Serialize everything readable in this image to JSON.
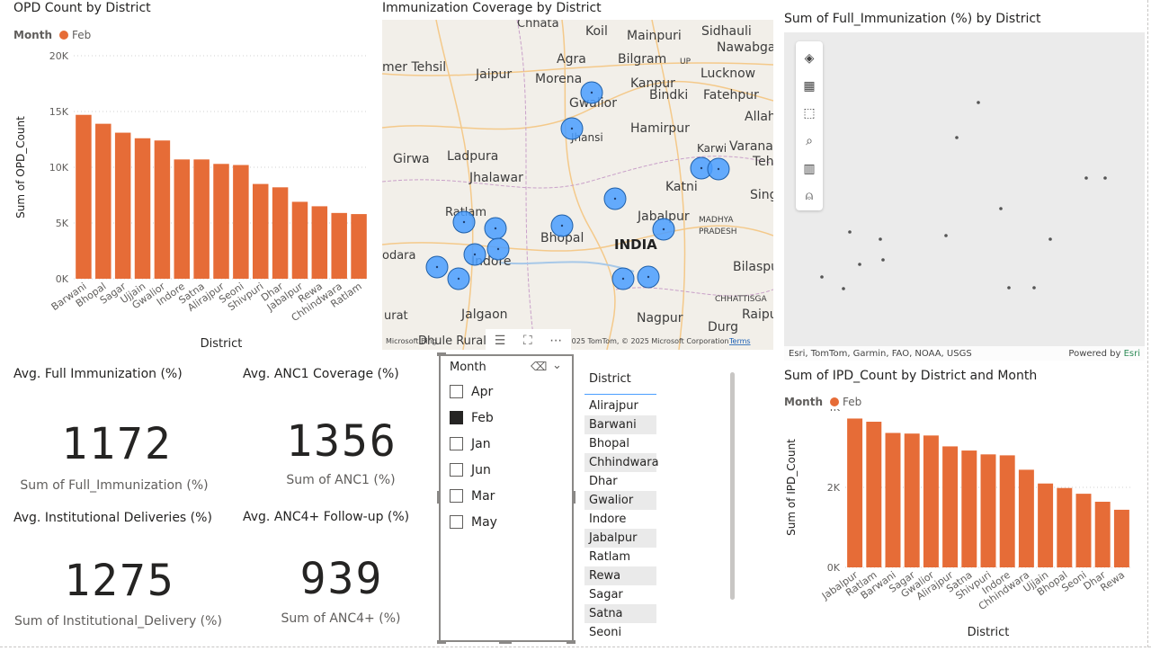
{
  "opd_chart": {
    "title": "OPD Count by District",
    "legend_header": "Month",
    "legend_item": "Feb"
  },
  "immunization_map": {
    "title": "Immunization Coverage by District",
    "place_labels": [
      "Chhata",
      "Koil",
      "Mainpuri",
      "Sidhauli",
      "Nawabganj",
      "mer Tehsil",
      "Jaipur",
      "Agra",
      "Bilgram",
      "UP",
      "Lucknow",
      "Morena",
      "Kanpur",
      "Bindki",
      "Fatehpur",
      "Gwalior",
      "Allah",
      "Jhansi",
      "Hamirpur",
      "Varanasi",
      "Karwi",
      "Tehsi",
      "Girwa",
      "Ladpura",
      "Jhalawar",
      "Katni",
      "Sing",
      "Ratlam",
      "Jabalpur",
      "MADHYA",
      "PRADESH",
      "Bhopal",
      "INDIA",
      "odara",
      "Indore",
      "Bilaspur",
      "CHHATTISGA",
      "urat",
      "Jalgaon",
      "Raipu",
      "Dhule Rural",
      "Nagpur",
      "Durg"
    ],
    "attribution": "© 2025 TomTom, © 2025 Microsoft Corporation",
    "terms_label": "Terms",
    "bing_label": "Microsoft Bing"
  },
  "full_immunization_map": {
    "title": "Sum of Full_Immunization (%) by District",
    "attribution_left": "Esri, TomTom, Garmin, FAO, NOAA, USGS",
    "powered_by_label": "Powered by",
    "esri_label": "Esri",
    "tools": [
      "layers-icon",
      "qr-grid-icon",
      "select-box-icon",
      "magnify-icon",
      "bar-chart-icon",
      "person-icon"
    ]
  },
  "cards": [
    {
      "title": "Avg. Full Immunization (%)",
      "value": "1172",
      "label": "Sum of Full_Immunization (%)"
    },
    {
      "title": "Avg. ANC1 Coverage (%)",
      "value": "1356",
      "label": "Sum of ANC1 (%)"
    },
    {
      "title": "Avg. Institutional Deliveries (%)",
      "value": "1275",
      "label": "Sum of Institutional_Delivery (%)"
    },
    {
      "title": "Avg. ANC4+ Follow-up (%)",
      "value": "939",
      "label": "Sum of ANC4+ (%)"
    }
  ],
  "month_slicer": {
    "header": "Month",
    "items": [
      {
        "label": "Apr",
        "checked": false
      },
      {
        "label": "Feb",
        "checked": true
      },
      {
        "label": "Jan",
        "checked": false
      },
      {
        "label": "Jun",
        "checked": false
      },
      {
        "label": "Mar",
        "checked": false
      },
      {
        "label": "May",
        "checked": false
      }
    ]
  },
  "district_slicer": {
    "header": "District",
    "items": [
      "Alirajpur",
      "Barwani",
      "Bhopal",
      "Chhindwara",
      "Dhar",
      "Gwalior",
      "Indore",
      "Jabalpur",
      "Ratlam",
      "Rewa",
      "Sagar",
      "Satna",
      "Seoni"
    ]
  },
  "ipd_chart": {
    "title": "Sum of IPD_Count by District and Month",
    "legend_header": "Month",
    "legend_item": "Feb"
  },
  "colors": {
    "bar": "#e66c37",
    "bubble": "#4a9eff",
    "grid": "#d0d0d0"
  },
  "chart_data": [
    {
      "type": "bar",
      "title": "OPD Count by District",
      "xlabel": "District",
      "ylabel": "Sum of OPD_Count",
      "series": [
        {
          "name": "Feb",
          "values": [
            14700,
            13900,
            13100,
            12600,
            12400,
            10700,
            10700,
            10300,
            10200,
            8500,
            8200,
            6900,
            6500,
            5900,
            5800
          ]
        }
      ],
      "categories": [
        "Barwani",
        "Bhopal",
        "Sagar",
        "Ujjain",
        "Gwalior",
        "Indore",
        "Satna",
        "Alirajpur",
        "Seoni",
        "Shivpuri",
        "Dhar",
        "Jabalpur",
        "Rewa",
        "Chhindwara",
        "Ratlam"
      ],
      "ylim": [
        0,
        20000
      ],
      "yticks": [
        "0K",
        "5K",
        "10K",
        "15K",
        "20K"
      ],
      "grid": true,
      "legend": "top-left"
    },
    {
      "type": "bar",
      "title": "Sum of IPD_Count by District and Month",
      "xlabel": "District",
      "ylabel": "Sum of IPD_Count",
      "series": [
        {
          "name": "Feb",
          "values": [
            4650,
            4550,
            4200,
            4180,
            4120,
            3780,
            3650,
            3530,
            3500,
            3050,
            2620,
            2480,
            2300,
            2050,
            1800
          ]
        }
      ],
      "categories": [
        "Jabalpur",
        "Ratlam",
        "Barwani",
        "Sagar",
        "Gwalior",
        "Alirajpur",
        "Satna",
        "Shivpuri",
        "Indore",
        "Chhindwara",
        "Ujjain",
        "Bhopal",
        "Seoni",
        "Dhar",
        "Rewa"
      ],
      "ylim": [
        0,
        5000
      ],
      "yticks": [
        "0K",
        "2K",
        "4K"
      ],
      "grid": true,
      "legend": "top-left"
    }
  ]
}
